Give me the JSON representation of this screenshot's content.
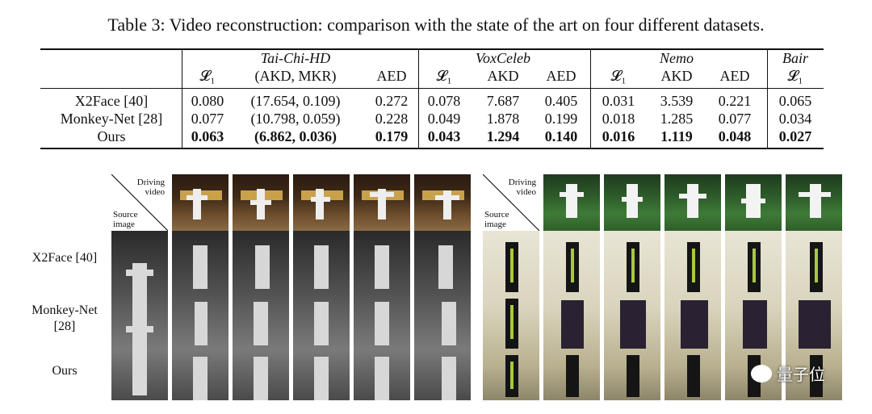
{
  "caption": "Table 3: Video reconstruction: comparison with the state of the art on four different datasets.",
  "groups": [
    "Tai-Chi-HD",
    "VoxCeleb",
    "Nemo",
    "Bair"
  ],
  "subheaders": [
    "𝓛₁",
    "(AKD, MKR)",
    "AED",
    "𝓛₁",
    "AKD",
    "AED",
    "𝓛₁",
    "AKD",
    "AED",
    "𝓛₁"
  ],
  "rows": [
    {
      "name": "X2Face [40]",
      "cells": [
        "0.080",
        "(17.654, 0.109)",
        "0.272",
        "0.078",
        "7.687",
        "0.405",
        "0.031",
        "3.539",
        "0.221",
        "0.065"
      ]
    },
    {
      "name": "Monkey-Net [28]",
      "cells": [
        "0.077",
        "(10.798, 0.059)",
        "0.228",
        "0.049",
        "1.878",
        "0.199",
        "0.018",
        "1.285",
        "0.077",
        "0.034"
      ]
    },
    {
      "name": "Ours",
      "cells": [
        "0.063",
        "(6.862, 0.036)",
        "0.179",
        "0.043",
        "1.294",
        "0.140",
        "0.016",
        "1.119",
        "0.048",
        "0.027"
      ]
    }
  ],
  "figure": {
    "driving_label": "Driving video",
    "source_label": "Source image",
    "row_labels": [
      "X2Face [40]",
      "Monkey-Net [28]",
      "Ours"
    ],
    "watermark": "量子位"
  }
}
